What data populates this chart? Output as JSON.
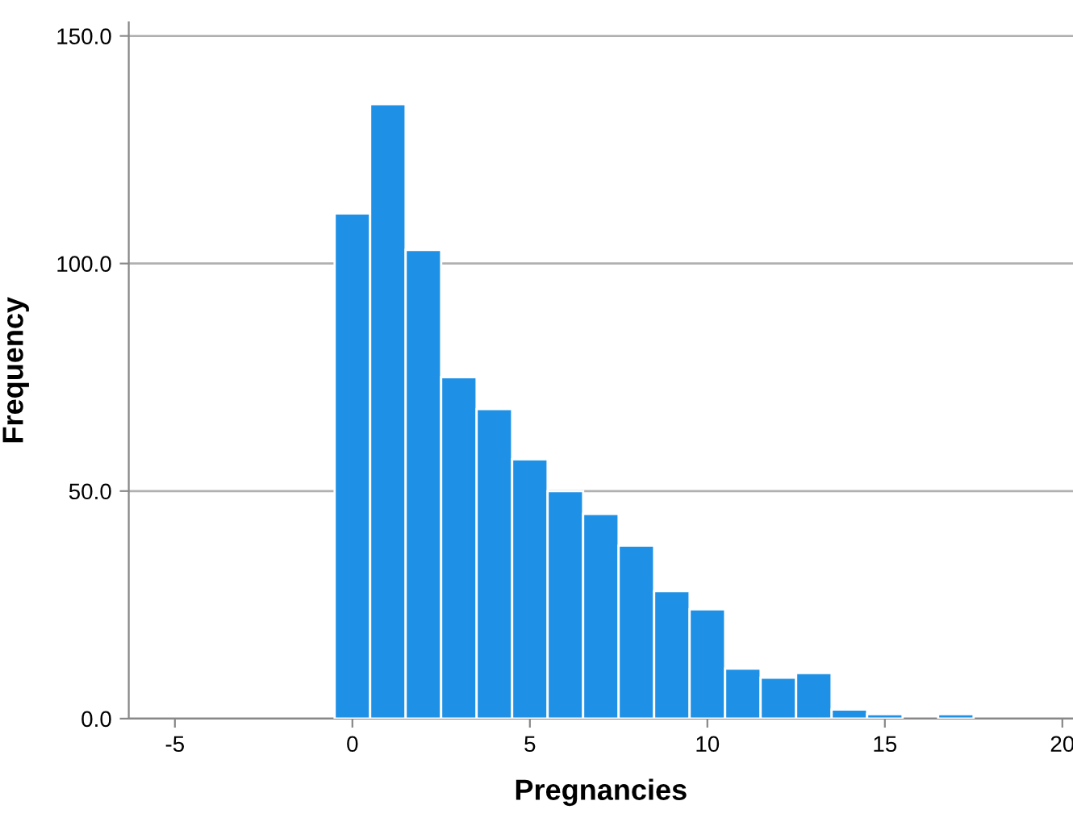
{
  "chart_data": {
    "type": "histogram",
    "xlabel": "Pregnancies",
    "ylabel": "Frequency",
    "bins": [
      -0.5,
      0.5,
      1.5,
      2.5,
      3.5,
      4.5,
      5.5,
      6.5,
      7.5,
      8.5,
      9.5,
      10.5,
      11.5,
      12.5,
      13.5,
      14.5,
      15.5,
      16.5,
      17.5
    ],
    "values": [
      111,
      135,
      103,
      75,
      68,
      57,
      50,
      45,
      38,
      28,
      24,
      11,
      9,
      10,
      2,
      1,
      0,
      1
    ],
    "color": "#1e90e6",
    "xlim": [
      -6.3,
      20.3
    ],
    "xticks": [
      -5,
      0,
      5,
      10,
      15,
      20
    ],
    "ylim": [
      0,
      153
    ],
    "yticks": [
      {
        "value": 0,
        "label": "0.0"
      },
      {
        "value": 50,
        "label": "50.0"
      },
      {
        "value": 100,
        "label": "100.0"
      },
      {
        "value": 150,
        "label": "150.0"
      }
    ],
    "grid": "y"
  }
}
